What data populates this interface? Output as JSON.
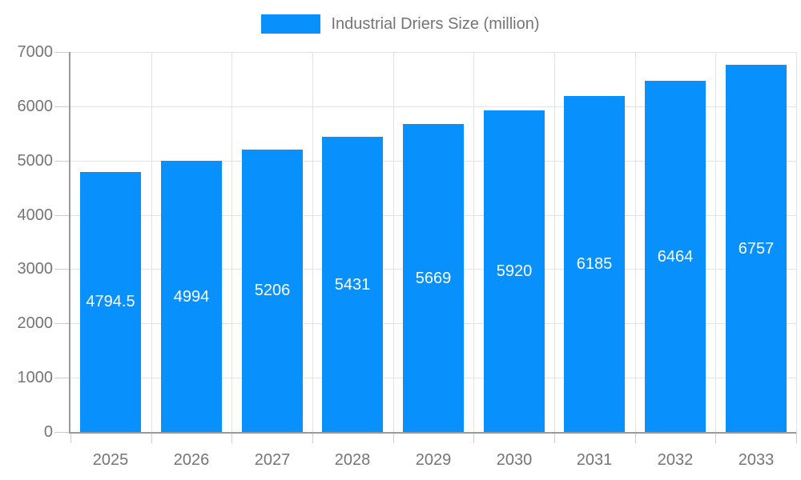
{
  "legend": {
    "label": "Industrial Driers Size (million)",
    "marker_color": "#0890FC"
  },
  "colors": {
    "bar": "#0890FC",
    "grid": "#e3e3e3",
    "axis": "#9a9a9a",
    "tick": "#cccccc",
    "text": "#757575",
    "bar_label": "#ffffff"
  },
  "chart_data": {
    "type": "bar",
    "title": "Industrial Driers Size (million)",
    "series_name": "Industrial Driers Size (million)",
    "categories": [
      "2025",
      "2026",
      "2027",
      "2028",
      "2029",
      "2030",
      "2031",
      "2032",
      "2033"
    ],
    "values": [
      4794.5,
      4994,
      5206,
      5431,
      5669,
      5920,
      6185,
      6464,
      6757
    ],
    "xlabel": "",
    "ylabel": "",
    "ylim": [
      0,
      7000
    ],
    "yticks": [
      0,
      1000,
      2000,
      3000,
      4000,
      5000,
      6000,
      7000
    ],
    "grid": true,
    "legend_position": "top",
    "data_label_position": "inside-center",
    "bar_color": "#0890FC"
  }
}
